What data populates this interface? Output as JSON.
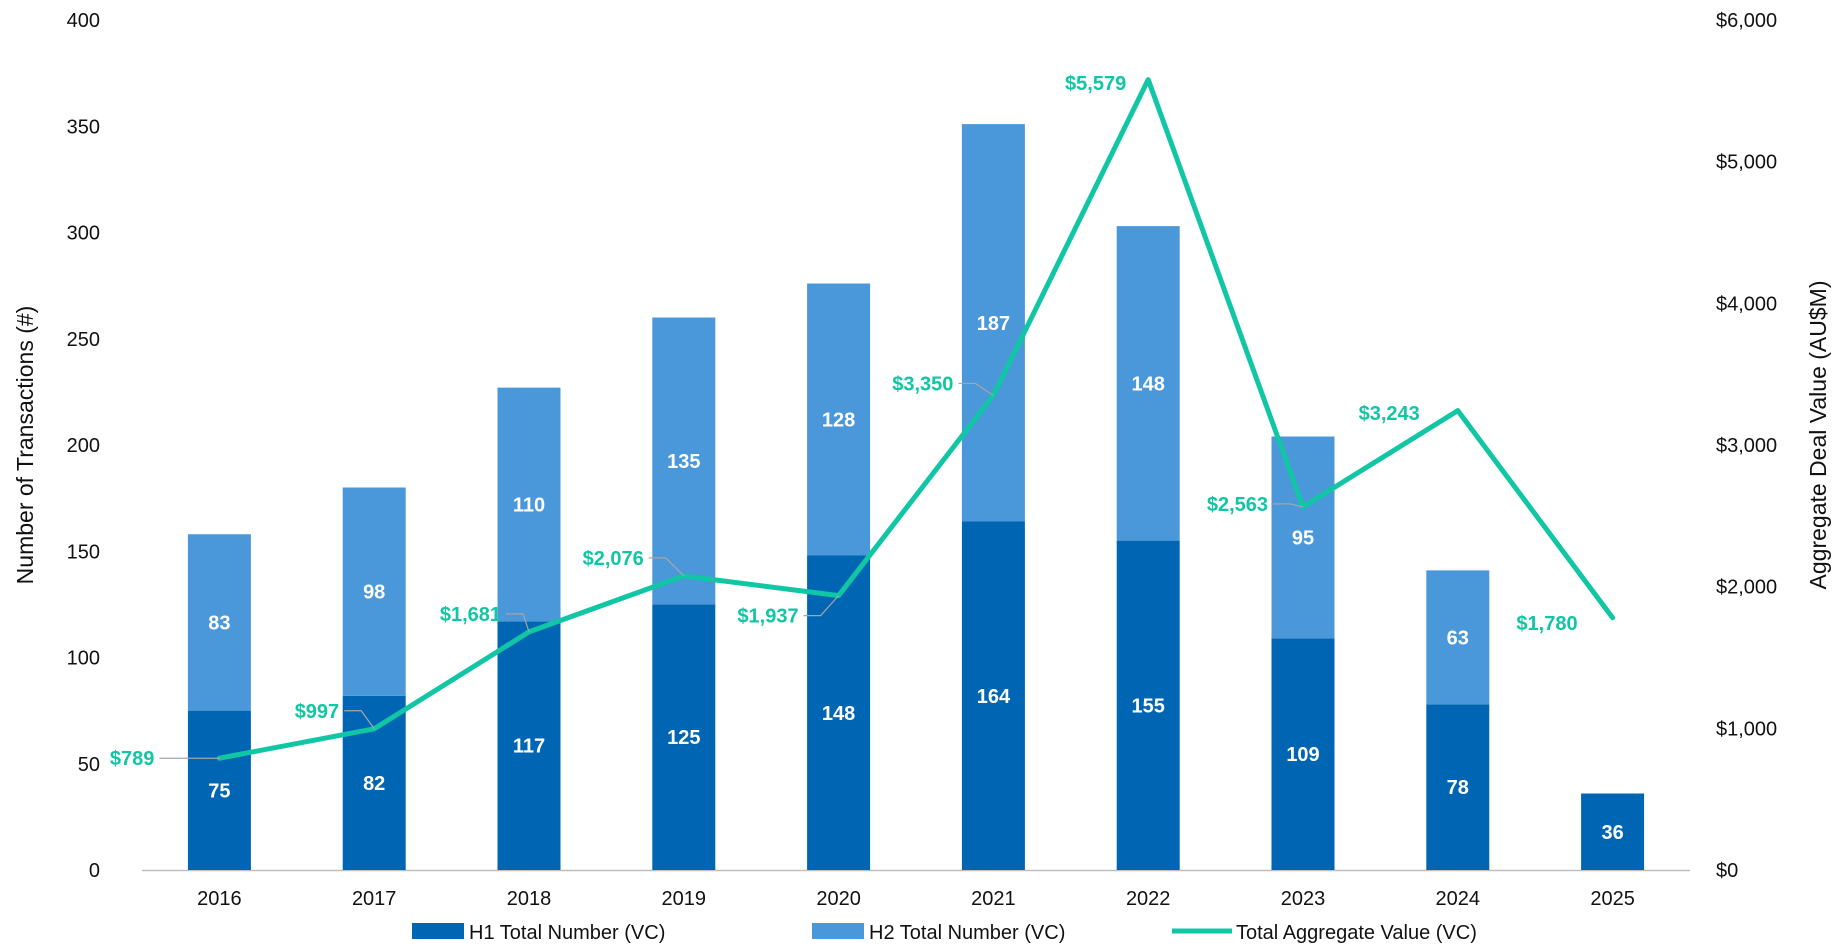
{
  "chart_data": {
    "type": "bar",
    "subtype": "stacked-bar-with-line",
    "title": "",
    "categories": [
      "2016",
      "2017",
      "2018",
      "2019",
      "2020",
      "2021",
      "2022",
      "2023",
      "2024",
      "2025"
    ],
    "series": [
      {
        "name": "H1 Total Number (VC)",
        "kind": "bar",
        "axis": "left",
        "color": "#0066b3",
        "values": [
          75,
          82,
          117,
          125,
          148,
          164,
          155,
          109,
          78,
          36
        ],
        "labels": [
          "75",
          "82",
          "117",
          "125",
          "148",
          "164",
          "155",
          "109",
          "78",
          "36"
        ]
      },
      {
        "name": "H2 Total Number (VC)",
        "kind": "bar",
        "axis": "left",
        "color": "#4a98da",
        "values": [
          83,
          98,
          110,
          135,
          128,
          187,
          148,
          95,
          63,
          null
        ],
        "labels": [
          "83",
          "98",
          "110",
          "135",
          "128",
          "187",
          "148",
          "95",
          "63",
          ""
        ]
      },
      {
        "name": "Total Aggregate Value (VC)",
        "kind": "line",
        "axis": "right",
        "color": "#10c6a4",
        "values": [
          789,
          997,
          1681,
          2076,
          1937,
          3350,
          5579,
          2563,
          3243,
          1780
        ],
        "labels": [
          "$789",
          "$997",
          "$1,681",
          "$2,076",
          "$1,937",
          "$3,350",
          "$5,579",
          "$2,563",
          "$3,243",
          "$1,780"
        ]
      }
    ],
    "ylabel": "Number of Transactions (#)",
    "y2label": "Aggregate Deal  Value (AU$M)",
    "xlabel": "",
    "ylim": [
      0,
      400
    ],
    "y2lim": [
      0,
      6000
    ],
    "yticks": [
      "0",
      "50",
      "100",
      "150",
      "200",
      "250",
      "300",
      "350",
      "400"
    ],
    "y2ticks": [
      "$0",
      "$1,000",
      "$2,000",
      "$3,000",
      "$4,000",
      "$5,000",
      "$6,000"
    ],
    "grid": false,
    "legend_position": "bottom"
  }
}
